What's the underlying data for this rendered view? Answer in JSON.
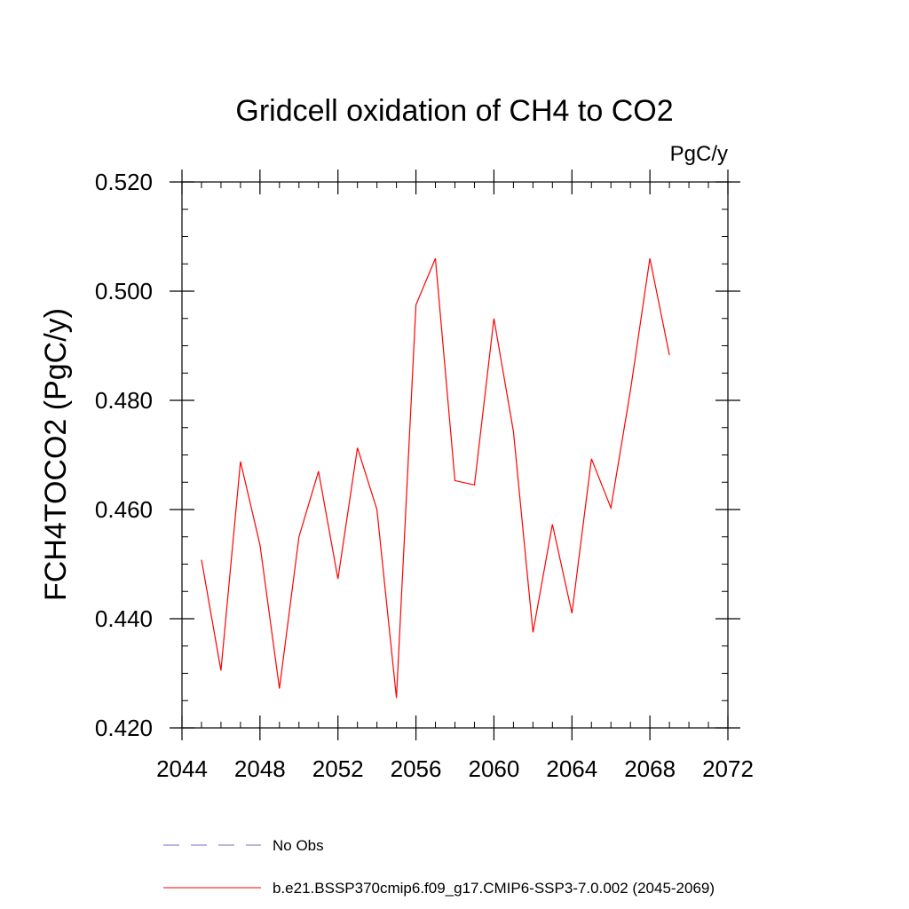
{
  "chart_data": {
    "type": "line",
    "title": "Gridcell oxidation of CH4 to CO2",
    "units_label": "PgC/y",
    "ylabel": "FCH4TOCO2  (PgC/y)",
    "xlabel": "",
    "xlim": [
      2044,
      2072
    ],
    "ylim": [
      0.42,
      0.52
    ],
    "x_ticks": [
      2044,
      2048,
      2052,
      2056,
      2060,
      2064,
      2068,
      2072
    ],
    "x_tick_labels": [
      "2044",
      "2048",
      "2052",
      "2056",
      "2060",
      "2064",
      "2068",
      "2072"
    ],
    "y_ticks": [
      0.42,
      0.44,
      0.46,
      0.48,
      0.5,
      0.52
    ],
    "y_tick_labels": [
      "0.420",
      "0.440",
      "0.460",
      "0.480",
      "0.500",
      "0.520"
    ],
    "grid": false,
    "legend_position": "bottom",
    "series": [
      {
        "name": "b.e21.BSSP370cmip6.f09_g17.CMIP6-SSP3-7.0.002 (2045-2069)",
        "color": "#ff0000",
        "dash": "solid",
        "x": [
          2045,
          2046,
          2047,
          2048,
          2049,
          2050,
          2051,
          2052,
          2053,
          2054,
          2055,
          2056,
          2057,
          2058,
          2059,
          2060,
          2061,
          2062,
          2063,
          2064,
          2065,
          2066,
          2067,
          2068,
          2069
        ],
        "y": [
          0.4508,
          0.4305,
          0.4688,
          0.4535,
          0.4272,
          0.455,
          0.467,
          0.4473,
          0.4713,
          0.46,
          0.4255,
          0.4975,
          0.506,
          0.4653,
          0.4645,
          0.495,
          0.4743,
          0.4375,
          0.4573,
          0.441,
          0.4693,
          0.4603,
          0.4818,
          0.506,
          0.4883
        ]
      }
    ],
    "legend": [
      {
        "label": "No Obs",
        "color": "#7b68c8",
        "dash": "dashed"
      },
      {
        "label": "b.e21.BSSP370cmip6.f09_g17.CMIP6-SSP3-7.0.002 (2045-2069)",
        "color": "#ff0000",
        "dash": "solid"
      }
    ]
  }
}
